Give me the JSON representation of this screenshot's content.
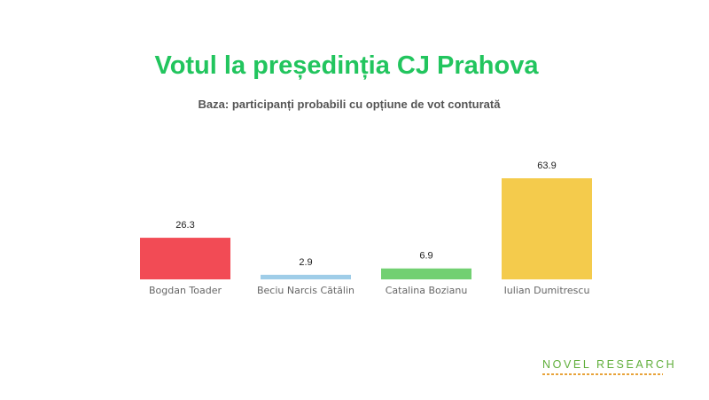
{
  "title": "Votul la președinția CJ Prahova",
  "subtitle": "Baza: participanți probabili cu opțiune de vot conturată",
  "logo": {
    "text": "NOVEL RESEARCH"
  },
  "colors": {
    "title": "#22c55e",
    "bars": [
      "#f24b55",
      "#9fcde8",
      "#72d072",
      "#f4cb4c"
    ],
    "label": "#666666",
    "value": "#222222"
  },
  "chart_data": {
    "type": "bar",
    "title": "Votul la președinția CJ Prahova",
    "subtitle": "Baza: participanți probabili cu opțiune de vot conturată",
    "categories": [
      "Bogdan Toader",
      "Beciu Narcis Cătălin",
      "Catalina Bozianu",
      "Iulian Dumitrescu"
    ],
    "values": [
      26.3,
      2.9,
      6.9,
      63.9
    ],
    "value_labels": [
      "26.3",
      "2.9",
      "6.9",
      "63.9"
    ],
    "xlabel": "",
    "ylabel": "",
    "ylim": [
      0,
      63.9
    ],
    "grid": false,
    "legend": "none"
  }
}
